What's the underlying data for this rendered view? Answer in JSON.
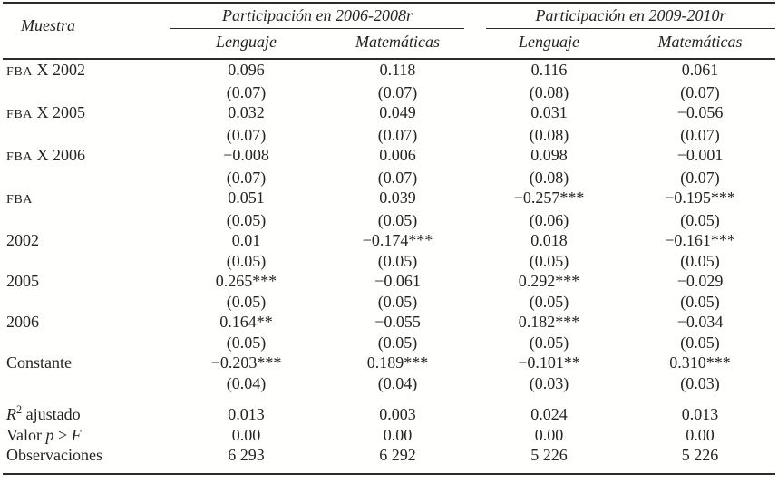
{
  "table": {
    "corner_label": "Muestra",
    "groups": [
      {
        "title": "Participación en 2006-2008r",
        "subcols": [
          "Lenguaje",
          "Matemáticas"
        ]
      },
      {
        "title": "Participación en 2009-2010r",
        "subcols": [
          "Lenguaje",
          "Matemáticas"
        ]
      }
    ],
    "coef_rows": [
      {
        "label": [
          {
            "t": "FBA",
            "s": "sc"
          },
          {
            "t": " X 2002",
            "s": "n"
          }
        ],
        "est": [
          "0.096",
          "0.118",
          "0.116",
          "0.061"
        ],
        "se": [
          "(0.07)",
          "(0.07)",
          "(0.08)",
          "(0.07)"
        ]
      },
      {
        "label": [
          {
            "t": "FBA",
            "s": "sc"
          },
          {
            "t": " X 2005",
            "s": "n"
          }
        ],
        "est": [
          "0.032",
          "0.049",
          "0.031",
          "−0.056"
        ],
        "se": [
          "(0.07)",
          "(0.07)",
          "(0.08)",
          "(0.07)"
        ]
      },
      {
        "label": [
          {
            "t": "FBA",
            "s": "sc"
          },
          {
            "t": " X 2006",
            "s": "n"
          }
        ],
        "est": [
          "−0.008",
          "0.006",
          "0.098",
          "−0.001"
        ],
        "se": [
          "(0.07)",
          "(0.07)",
          "(0.08)",
          "(0.07)"
        ]
      },
      {
        "label": [
          {
            "t": "FBA",
            "s": "sc"
          }
        ],
        "est": [
          "0.051",
          "0.039",
          "−0.257***",
          "−0.195***"
        ],
        "se": [
          "(0.05)",
          "(0.05)",
          "(0.06)",
          "(0.05)"
        ]
      },
      {
        "label": [
          {
            "t": "2002",
            "s": "n"
          }
        ],
        "est": [
          "0.01",
          "−0.174***",
          "0.018",
          "−0.161***"
        ],
        "se": [
          "(0.05)",
          "(0.05)",
          "(0.05)",
          "(0.05)"
        ]
      },
      {
        "label": [
          {
            "t": "2005",
            "s": "n"
          }
        ],
        "est": [
          "0.265***",
          "−0.061",
          "0.292***",
          "−0.029"
        ],
        "se": [
          "(0.05)",
          "(0.05)",
          "(0.05)",
          "(0.05)"
        ]
      },
      {
        "label": [
          {
            "t": "2006",
            "s": "n"
          }
        ],
        "est": [
          "0.164**",
          "−0.055",
          "0.182***",
          "−0.034"
        ],
        "se": [
          "(0.05)",
          "(0.05)",
          "(0.05)",
          "(0.05)"
        ]
      },
      {
        "label": [
          {
            "t": "Constante",
            "s": "n"
          }
        ],
        "est": [
          "−0.203***",
          "0.189***",
          "−0.101**",
          "0.310***"
        ],
        "se": [
          "(0.04)",
          "(0.04)",
          "(0.03)",
          "(0.03)"
        ]
      }
    ],
    "stat_rows": [
      {
        "label": [
          {
            "t": "R",
            "s": "i"
          },
          {
            "t": "2",
            "s": "sup"
          },
          {
            "t": " ajustado",
            "s": "n"
          }
        ],
        "vals": [
          "0.013",
          "0.003",
          "0.024",
          "0.013"
        ]
      },
      {
        "label": [
          {
            "t": "Valor ",
            "s": "n"
          },
          {
            "t": "p",
            "s": "i"
          },
          {
            "t": " > ",
            "s": "n"
          },
          {
            "t": "F",
            "s": "i"
          }
        ],
        "vals": [
          "0.00",
          "0.00",
          "0.00",
          "0.00"
        ]
      },
      {
        "label": [
          {
            "t": "Observaciones",
            "s": "n"
          }
        ],
        "vals": [
          "6 293",
          "6 292",
          "5 226",
          "5 226"
        ]
      }
    ]
  }
}
